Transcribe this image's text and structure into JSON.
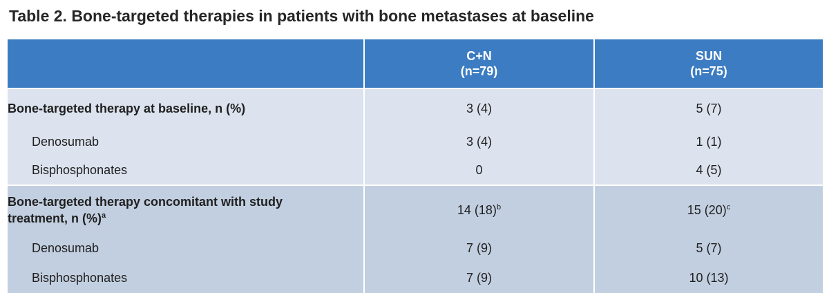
{
  "title": "Table 2. Bone-targeted therapies in patients with bone metastases at baseline",
  "columns": [
    {
      "name": "C+N",
      "n": "(n=79)"
    },
    {
      "name": "SUN",
      "n": "(n=75)"
    }
  ],
  "sections": [
    {
      "label": "Bone-targeted therapy at baseline, n (%)",
      "values": [
        "3 (4)",
        "5 (7)"
      ],
      "rows": [
        {
          "label": "Denosumab",
          "values": [
            "3 (4)",
            "1 (1)"
          ]
        },
        {
          "label": "Bisphosphonates",
          "values": [
            "0",
            "4 (5)"
          ]
        }
      ]
    },
    {
      "label_line1": "Bone-targeted therapy concomitant with study",
      "label_line2": "treatment, n (%)",
      "label_sup": "a",
      "values": [
        "14 (18)",
        "15 (20)"
      ],
      "value_sups": [
        "b",
        "c"
      ],
      "rows": [
        {
          "label": "Denosumab",
          "values": [
            "7 (9)",
            "5 (7)"
          ]
        },
        {
          "label": "Bisphosphonates",
          "values": [
            "7 (9)",
            "10 (13)"
          ]
        }
      ]
    }
  ],
  "colors": {
    "header_bg": "#3c7cc2",
    "section1_bg": "#dce3ee",
    "section2_bg": "#c2cfe0"
  }
}
